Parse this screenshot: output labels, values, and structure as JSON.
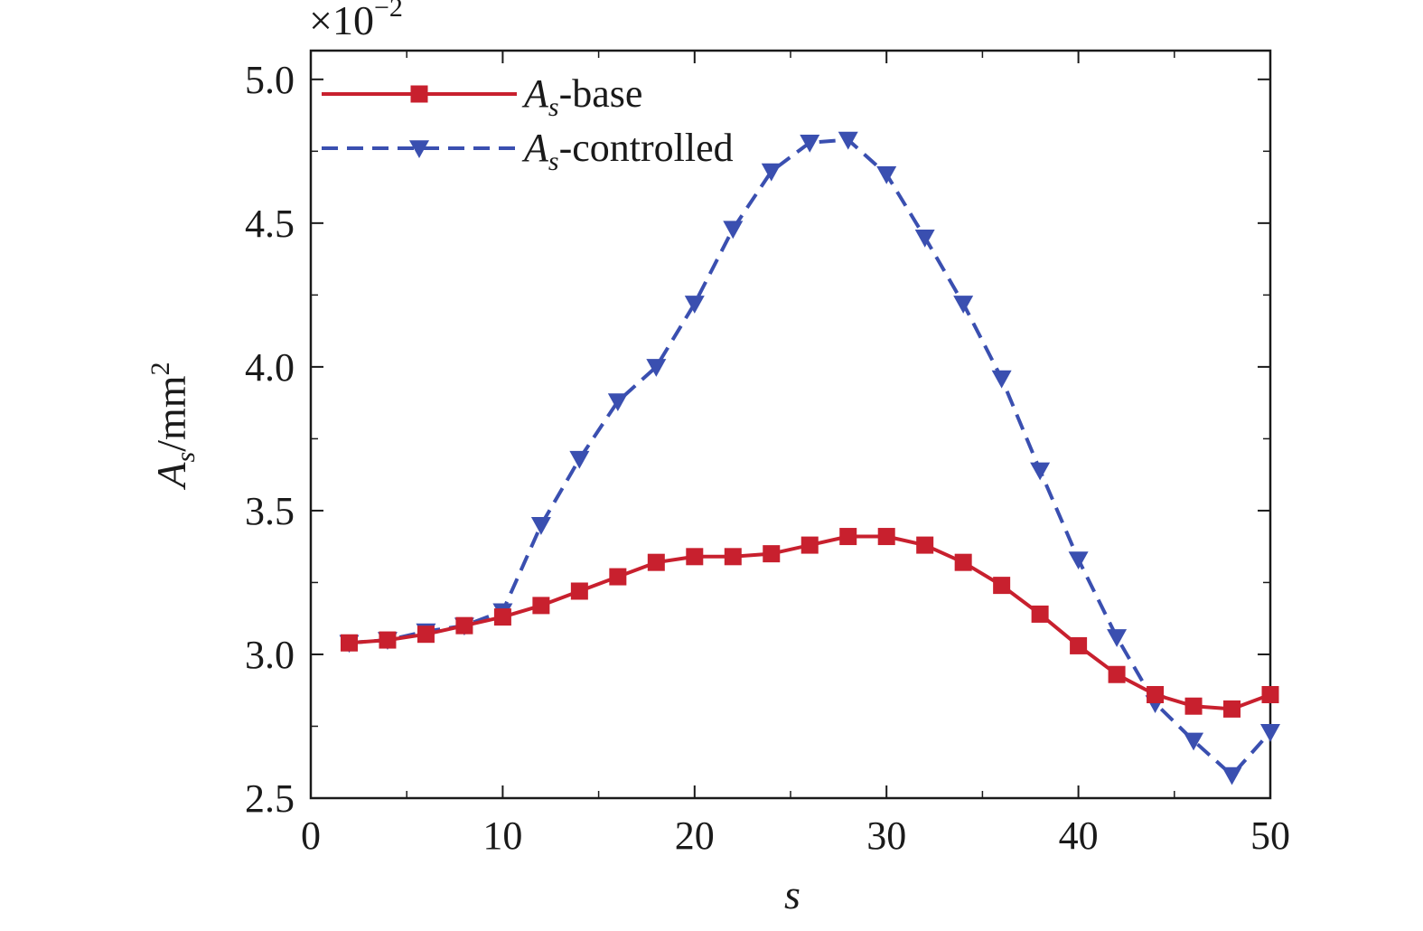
{
  "chart_data": {
    "type": "line",
    "xlabel": "s",
    "ylabel_main": "A",
    "ylabel_sub": "s",
    "ylabel_unit": "/mm",
    "ylabel_sup": "2",
    "multiplier_base": "×10",
    "multiplier_exp": "−2",
    "xlim": [
      0,
      50
    ],
    "ylim": [
      2.5,
      5.1
    ],
    "xticks": [
      0,
      10,
      20,
      30,
      40,
      50
    ],
    "xtick_labels": [
      "0",
      "10",
      "20",
      "30",
      "40",
      "50"
    ],
    "yticks": [
      2.5,
      3.0,
      3.5,
      4.0,
      4.5,
      5.0
    ],
    "ytick_labels": [
      "2.5",
      "3.0",
      "3.5",
      "4.0",
      "4.5",
      "5.0"
    ],
    "x": [
      2,
      4,
      6,
      8,
      10,
      12,
      14,
      16,
      18,
      20,
      22,
      24,
      26,
      28,
      30,
      32,
      34,
      36,
      38,
      40,
      42,
      44,
      46,
      48,
      50
    ],
    "series": [
      {
        "legend_main": "A",
        "legend_sub": "s",
        "legend_suffix": "-base",
        "color": "#c8202e",
        "line_style": "solid",
        "marker": "square",
        "values": [
          3.04,
          3.05,
          3.07,
          3.1,
          3.13,
          3.17,
          3.22,
          3.27,
          3.32,
          3.34,
          3.34,
          3.35,
          3.38,
          3.41,
          3.41,
          3.38,
          3.32,
          3.24,
          3.14,
          3.03,
          2.93,
          2.86,
          2.82,
          2.81,
          2.86
        ]
      },
      {
        "legend_main": "A",
        "legend_sub": "s",
        "legend_suffix": "-controlled",
        "color": "#3a4fb0",
        "line_style": "dashed",
        "marker": "triangle-down",
        "values": [
          3.04,
          3.05,
          3.08,
          3.1,
          3.15,
          3.45,
          3.68,
          3.88,
          4.0,
          4.22,
          4.48,
          4.68,
          4.78,
          4.79,
          4.67,
          4.45,
          4.22,
          3.96,
          3.64,
          3.33,
          3.06,
          2.83,
          2.7,
          2.58,
          2.73
        ]
      }
    ],
    "legend_position": "top-left",
    "grid": false
  }
}
